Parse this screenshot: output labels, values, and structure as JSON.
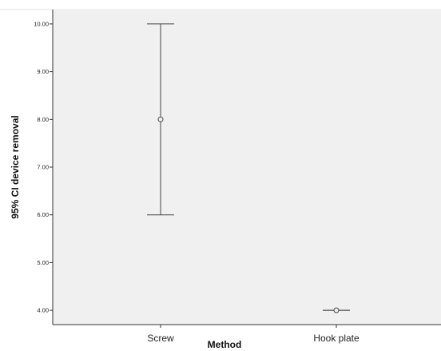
{
  "chart_data": {
    "type": "errorbar",
    "xlabel": "Method",
    "ylabel": "95% CI device removal",
    "categories": [
      "Screw",
      "Hook plate"
    ],
    "series": [
      {
        "points": [
          {
            "category": "Screw",
            "mean": 8.0,
            "lower": 6.0,
            "upper": 10.0
          },
          {
            "category": "Hook plate",
            "mean": 4.0,
            "lower": 4.0,
            "upper": 4.0
          }
        ]
      }
    ],
    "y_ticks": [
      "4.00",
      "5.00",
      "6.00",
      "7.00",
      "8.00",
      "9.00",
      "10.00"
    ],
    "ylim": [
      3.7,
      10.3
    ],
    "grid": false,
    "colors": {
      "plot_background": "#f0f0f0",
      "axis": "#333333",
      "marks": "#444444"
    }
  }
}
